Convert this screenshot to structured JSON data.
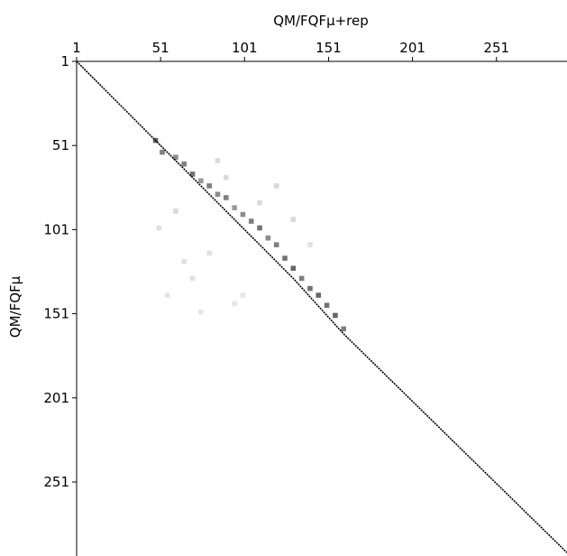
{
  "chart_data": {
    "type": "heatmap",
    "xlabel": "QM/FQFμ+rep",
    "ylabel": "QM/FQFμ",
    "xlim": [
      1,
      293
    ],
    "ylim": [
      1,
      295
    ],
    "xticks": [
      1,
      51,
      101,
      151,
      201,
      251
    ],
    "yticks": [
      1,
      51,
      101,
      151,
      201,
      251
    ],
    "color": "#000000",
    "diagonal": {
      "x": [
        1,
        42,
        60,
        100,
        130,
        160,
        293
      ],
      "y": [
        1,
        42,
        60,
        100,
        130,
        163,
        293
      ]
    },
    "cells": {
      "x": [
        48,
        52,
        60,
        65,
        70,
        75,
        80,
        85,
        90,
        95,
        100,
        105,
        110,
        115,
        120,
        125,
        130,
        135,
        140,
        145,
        150,
        155,
        160,
        50,
        55,
        70,
        60,
        80,
        90,
        75,
        100,
        85,
        110,
        65,
        120,
        95,
        130,
        140
      ],
      "y": [
        48,
        55,
        58,
        62,
        68,
        72,
        75,
        80,
        82,
        88,
        92,
        96,
        100,
        106,
        110,
        118,
        124,
        130,
        136,
        140,
        146,
        152,
        160,
        100,
        140,
        130,
        90,
        115,
        70,
        150,
        140,
        60,
        85,
        120,
        75,
        145,
        95,
        110
      ],
      "values": [
        0.6,
        0.5,
        0.45,
        0.5,
        0.55,
        0.4,
        0.5,
        0.45,
        0.5,
        0.4,
        0.45,
        0.5,
        0.55,
        0.45,
        0.5,
        0.55,
        0.6,
        0.5,
        0.55,
        0.6,
        0.55,
        0.6,
        0.5,
        0.12,
        0.1,
        0.12,
        0.15,
        0.12,
        0.15,
        0.1,
        0.1,
        0.15,
        0.15,
        0.12,
        0.15,
        0.1,
        0.15,
        0.12
      ]
    }
  }
}
